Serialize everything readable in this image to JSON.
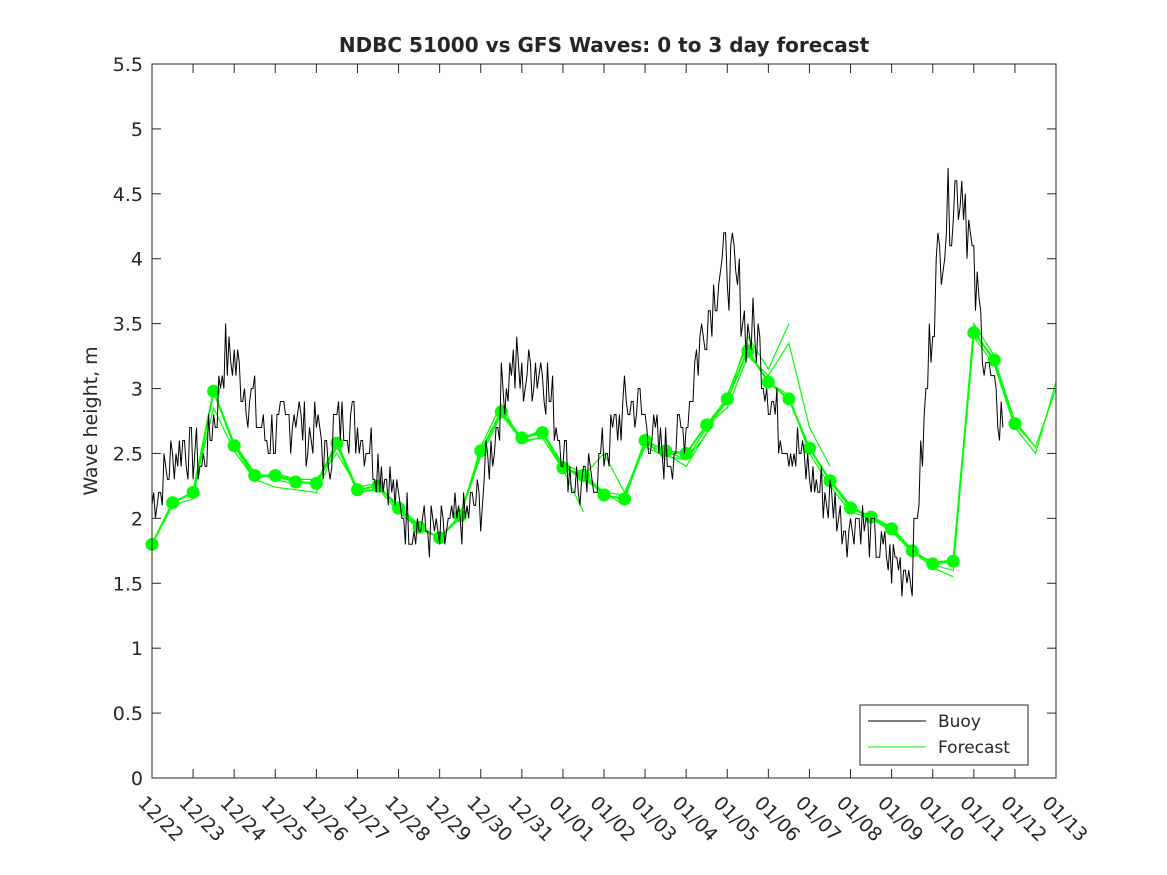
{
  "chart_data": {
    "type": "line",
    "title": "NDBC 51000 vs GFS Waves: 0 to 3 day forecast",
    "xlabel": "",
    "ylabel": "Wave height, m",
    "xlim": [
      0,
      22
    ],
    "ylim": [
      0,
      5.5
    ],
    "yticks": [
      0,
      0.5,
      1,
      1.5,
      2,
      2.5,
      3,
      3.5,
      4,
      4.5,
      5,
      5.5
    ],
    "ytick_labels": [
      "0",
      "0.5",
      "1",
      "1.5",
      "2",
      "2.5",
      "3",
      "3.5",
      "4",
      "4.5",
      "5",
      "5.5"
    ],
    "xtick_labels": [
      "12/22",
      "12/23",
      "12/24",
      "12/25",
      "12/26",
      "12/27",
      "12/28",
      "12/29",
      "12/30",
      "12/31",
      "01/01",
      "01/02",
      "01/03",
      "01/04",
      "01/05",
      "01/06",
      "01/07",
      "01/08",
      "01/09",
      "01/10",
      "01/11",
      "01/12",
      "01/13"
    ],
    "grid": false,
    "legend_position": "bottom-right",
    "legend": [
      "Buoy",
      "Forecast"
    ],
    "colors": {
      "buoy": "#000000",
      "forecast": "#00ff00",
      "axis": "#262626"
    },
    "buoy": {
      "name": "Buoy",
      "x": [
        0,
        0.25,
        0.5,
        0.75,
        1.0,
        1.25,
        1.5,
        1.75,
        2.0,
        2.25,
        2.5,
        2.75,
        3.0,
        3.25,
        3.5,
        3.75,
        4.0,
        4.25,
        4.5,
        4.75,
        5.0,
        5.25,
        5.5,
        5.75,
        6.0,
        6.25,
        6.5,
        6.75,
        7.0,
        7.25,
        7.5,
        7.75,
        8.0,
        8.25,
        8.5,
        8.75,
        9.0,
        9.25,
        9.5,
        9.75,
        10.0,
        10.25,
        10.5,
        10.75,
        11.0,
        11.25,
        11.5,
        11.75,
        12.0,
        12.25,
        12.5,
        12.75,
        13.0,
        13.25,
        13.5,
        13.75,
        14.0,
        14.25,
        14.5,
        14.75,
        15.0,
        15.25,
        15.5,
        15.75,
        16.0,
        16.25,
        16.5,
        16.75,
        17.0,
        17.25,
        17.5,
        17.75,
        18.0,
        18.25,
        18.5,
        18.75,
        19.0,
        19.25,
        19.5,
        19.75,
        20.0,
        20.25,
        20.5,
        20.75,
        21.0,
        21.25,
        21.5,
        21.75,
        22.0
      ],
      "values": [
        2.1,
        2.25,
        2.45,
        2.6,
        2.5,
        2.4,
        2.75,
        3.25,
        3.2,
        3.0,
        2.85,
        2.6,
        2.65,
        2.7,
        2.85,
        2.6,
        2.7,
        2.45,
        2.75,
        2.8,
        2.7,
        2.6,
        2.45,
        2.3,
        2.1,
        2.0,
        1.95,
        1.9,
        1.85,
        1.9,
        2.0,
        2.05,
        2.15,
        2.5,
        2.95,
        3.2,
        3.05,
        3.15,
        3.2,
        2.85,
        2.55,
        2.3,
        2.2,
        2.35,
        2.5,
        2.65,
        2.85,
        2.9,
        2.75,
        2.6,
        2.5,
        2.55,
        2.75,
        3.25,
        3.55,
        3.85,
        4.0,
        3.75,
        3.45,
        3.35,
        3.0,
        2.75,
        2.6,
        2.5,
        2.35,
        2.25,
        2.15,
        2.0,
        1.95,
        2.0,
        1.85,
        1.75,
        1.65,
        1.6,
        1.65,
        2.5,
        3.65,
        4.2,
        4.5,
        4.6,
        3.85,
        3.35,
        2.85,
        2.75,
        null,
        null,
        null,
        null,
        null
      ]
    },
    "forecast": {
      "name": "Forecast",
      "markers": {
        "x": [
          0,
          0.5,
          1.0,
          1.5,
          2.0,
          2.5,
          3.0,
          3.5,
          4.0,
          4.5,
          5.0,
          5.5,
          6.0,
          6.5,
          7.0,
          7.5,
          8.0,
          8.5,
          9.0,
          9.5,
          10.0,
          10.5,
          11.0,
          11.5,
          12.0,
          12.5,
          13.0,
          13.5,
          14.0,
          14.5,
          15.0,
          15.5,
          16.0,
          16.5,
          17.0,
          17.5,
          18.0,
          18.5,
          19.0,
          19.5,
          20.0,
          20.5,
          21.0
        ],
        "values": [
          1.8,
          2.12,
          2.2,
          2.98,
          2.56,
          2.33,
          2.33,
          2.28,
          2.27,
          2.58,
          2.22,
          2.25,
          2.08,
          1.93,
          1.85,
          2.02,
          2.52,
          2.82,
          2.62,
          2.66,
          2.39,
          2.33,
          2.18,
          2.15,
          2.6,
          2.52,
          2.5,
          2.72,
          2.92,
          3.29,
          3.05,
          2.92,
          2.54,
          2.29,
          2.08,
          2.01,
          1.92,
          1.75,
          1.65,
          1.67,
          3.43,
          3.22,
          2.73
        ]
      },
      "runs": [
        {
          "x": [
            0.0,
            0.5,
            1.0,
            1.5,
            2.0,
            2.5,
            3.0,
            3.5
          ],
          "values": [
            1.8,
            2.1,
            2.15,
            2.98,
            2.58,
            2.35,
            2.3,
            2.26
          ]
        },
        {
          "x": [
            1.0,
            1.5,
            2.0,
            2.5,
            3.0,
            3.5,
            4.0,
            4.5
          ],
          "values": [
            2.2,
            2.85,
            2.52,
            2.3,
            2.24,
            2.22,
            2.2,
            2.55
          ]
        },
        {
          "x": [
            2.0,
            2.5,
            3.0,
            3.5,
            4.0,
            4.5,
            5.0,
            5.5
          ],
          "values": [
            2.56,
            2.3,
            2.35,
            2.3,
            2.25,
            2.6,
            2.2,
            2.22
          ]
        },
        {
          "x": [
            3.0,
            3.5,
            4.0,
            4.5,
            5.0,
            5.5,
            6.0,
            6.5
          ],
          "values": [
            2.33,
            2.3,
            2.3,
            2.5,
            2.24,
            2.27,
            2.06,
            1.95
          ]
        },
        {
          "x": [
            4.0,
            4.5,
            5.0,
            5.5,
            6.0,
            6.5,
            7.0,
            7.5
          ],
          "values": [
            2.27,
            2.56,
            2.2,
            2.23,
            2.05,
            1.92,
            1.86,
            2.0
          ]
        },
        {
          "x": [
            5.0,
            5.5,
            6.0,
            6.5,
            7.0,
            7.5,
            8.0,
            8.5
          ],
          "values": [
            2.22,
            2.25,
            2.1,
            1.95,
            1.84,
            2.03,
            2.5,
            2.83
          ]
        },
        {
          "x": [
            6.0,
            6.5,
            7.0,
            7.5,
            8.0,
            8.5,
            9.0,
            9.5
          ],
          "values": [
            2.08,
            1.92,
            1.85,
            2.0,
            2.55,
            2.88,
            2.58,
            2.63
          ]
        },
        {
          "x": [
            7.0,
            7.5,
            8.0,
            8.5,
            9.0,
            9.5,
            10.0,
            10.5
          ],
          "values": [
            1.85,
            2.02,
            2.48,
            2.8,
            2.6,
            2.62,
            2.38,
            2.05
          ]
        },
        {
          "x": [
            8.0,
            8.5,
            9.0,
            9.5,
            10.0,
            10.5,
            11.0,
            11.5
          ],
          "values": [
            2.52,
            2.82,
            2.62,
            2.68,
            2.4,
            2.3,
            2.2,
            2.1
          ]
        },
        {
          "x": [
            9.0,
            9.5,
            10.0,
            10.5,
            11.0,
            11.5,
            12.0,
            12.5
          ],
          "values": [
            2.62,
            2.66,
            2.42,
            2.35,
            2.2,
            2.18,
            2.6,
            2.45
          ]
        },
        {
          "x": [
            10.0,
            10.5,
            11.0,
            11.5,
            12.0,
            12.5,
            13.0,
            13.5
          ],
          "values": [
            2.39,
            2.33,
            2.5,
            2.2,
            2.55,
            2.48,
            2.45,
            2.65
          ]
        },
        {
          "x": [
            11.0,
            11.5,
            12.0,
            12.5,
            13.0,
            13.5,
            14.0,
            14.5
          ],
          "values": [
            2.18,
            2.15,
            2.58,
            2.5,
            2.4,
            2.66,
            2.95,
            3.35
          ]
        },
        {
          "x": [
            12.0,
            12.5,
            13.0,
            13.5,
            14.0,
            14.5,
            15.0,
            15.5
          ],
          "values": [
            2.6,
            2.52,
            2.45,
            2.7,
            2.9,
            3.4,
            3.15,
            3.5
          ]
        },
        {
          "x": [
            13.0,
            13.5,
            14.0,
            14.5,
            15.0,
            15.5,
            16.0,
            16.5
          ],
          "values": [
            2.5,
            2.72,
            2.85,
            3.25,
            3.1,
            3.35,
            2.7,
            2.4
          ]
        },
        {
          "x": [
            14.0,
            14.5,
            15.0,
            15.5,
            16.0,
            16.5,
            17.0,
            17.5
          ],
          "values": [
            2.92,
            3.29,
            3.05,
            2.92,
            2.54,
            2.29,
            2.08,
            2.01
          ]
        },
        {
          "x": [
            15.0,
            15.5,
            16.0,
            16.5,
            17.0,
            17.5,
            18.0,
            18.5
          ],
          "values": [
            3.05,
            2.95,
            2.5,
            2.25,
            2.05,
            2.0,
            1.9,
            1.74
          ]
        },
        {
          "x": [
            16.0,
            16.5,
            17.0,
            17.5,
            18.0,
            18.5,
            19.0,
            19.5
          ],
          "values": [
            2.54,
            2.3,
            2.1,
            2.0,
            1.9,
            1.75,
            1.62,
            1.55
          ]
        },
        {
          "x": [
            17.0,
            17.5,
            18.0,
            18.5,
            19.0,
            19.5,
            20.0,
            20.5
          ],
          "values": [
            2.08,
            2.02,
            1.93,
            1.76,
            1.64,
            1.6,
            3.5,
            3.25
          ]
        },
        {
          "x": [
            18.0,
            18.5,
            19.0,
            19.5,
            20.0,
            20.5,
            21.0,
            21.5
          ],
          "values": [
            1.92,
            1.75,
            1.66,
            1.68,
            3.45,
            3.2,
            2.75,
            2.55
          ]
        },
        {
          "x": [
            19.0,
            19.5,
            20.0,
            20.5,
            21.0,
            21.5,
            22.0
          ],
          "values": [
            1.65,
            1.67,
            3.4,
            3.18,
            2.7,
            2.5,
            3.05
          ]
        },
        {
          "x": [
            20.0,
            20.5,
            21.0,
            21.5,
            22.0
          ],
          "values": [
            3.43,
            3.22,
            2.73,
            2.55,
            3.0
          ]
        }
      ]
    }
  }
}
